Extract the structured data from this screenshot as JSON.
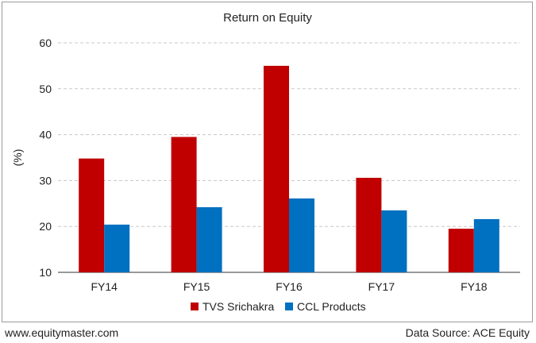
{
  "chart_data": {
    "type": "bar",
    "title": "Return on Equity",
    "ylabel": "(%)",
    "xlabel": "",
    "categories": [
      "FY14",
      "FY15",
      "FY16",
      "FY17",
      "FY18"
    ],
    "series": [
      {
        "name": "TVS Srichakra",
        "color": "#c00000",
        "values": [
          34.8,
          39.5,
          55.0,
          30.6,
          19.5
        ]
      },
      {
        "name": "CCL Products",
        "color": "#0070c0",
        "values": [
          20.4,
          24.2,
          26.1,
          23.5,
          21.6
        ]
      }
    ],
    "ylim": [
      10,
      60
    ],
    "yticks": [
      10,
      20,
      30,
      40,
      50,
      60
    ],
    "grid": true,
    "legend_position": "bottom"
  },
  "footer": {
    "website": "www.equitymaster.com",
    "source": "Data Source: ACE Equity"
  }
}
